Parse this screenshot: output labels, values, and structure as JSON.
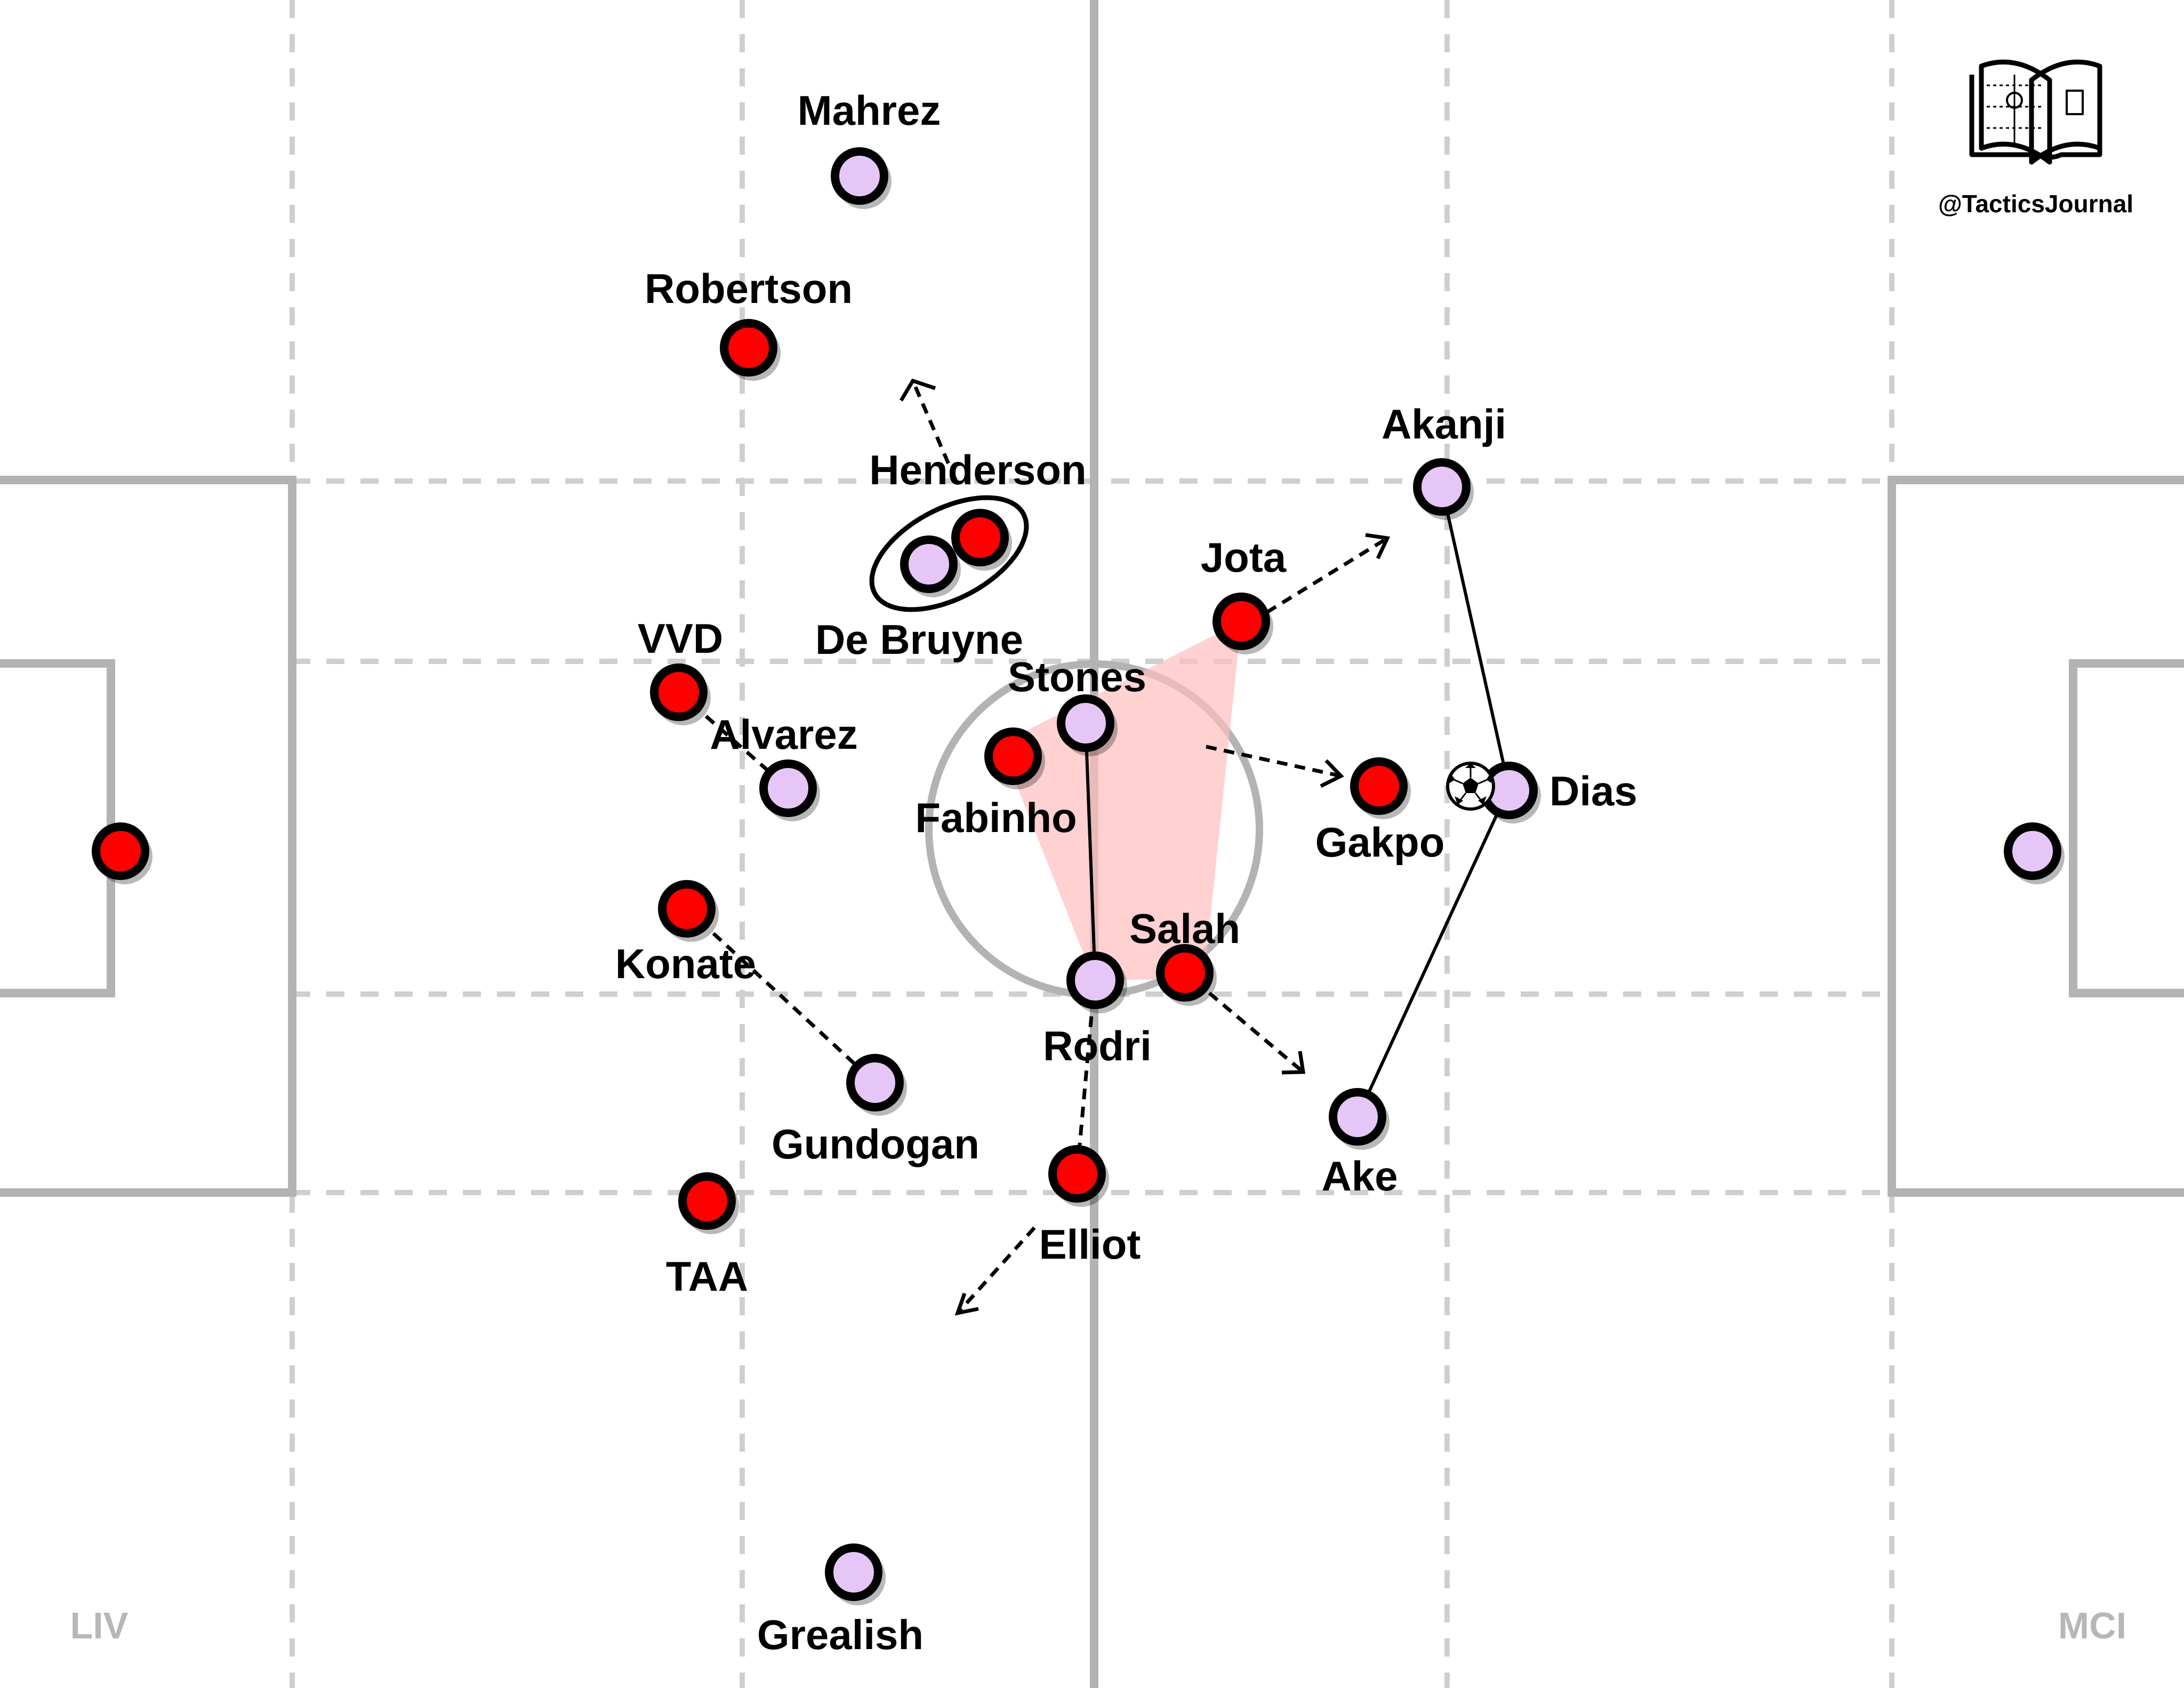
{
  "teams": {
    "left": "LIV",
    "right": "MCI"
  },
  "brand": {
    "handle": "@TacticsJournal",
    "icon": "open-book-pitch-icon"
  },
  "colors": {
    "liverpool": "#ff0000",
    "man_city": "#e5c6f7",
    "pitch_lines": "#b3b3b3",
    "zone_lines": "#cfcfcf",
    "passing_lane": "#ffbdbd"
  },
  "players": {
    "liverpool": [
      {
        "id": "liv-gk",
        "name": ""
      },
      {
        "id": "robertson",
        "name": "Robertson"
      },
      {
        "id": "henderson",
        "name": "Henderson"
      },
      {
        "id": "jota",
        "name": "Jota"
      },
      {
        "id": "vvd",
        "name": "VVD"
      },
      {
        "id": "fabinho",
        "name": "Fabinho"
      },
      {
        "id": "gakpo",
        "name": "Gakpo"
      },
      {
        "id": "konate",
        "name": "Konate"
      },
      {
        "id": "salah",
        "name": "Salah"
      },
      {
        "id": "taa",
        "name": "TAA"
      },
      {
        "id": "elliot",
        "name": "Elliot"
      }
    ],
    "man_city": [
      {
        "id": "mahrez",
        "name": "Mahrez"
      },
      {
        "id": "de-bruyne",
        "name": "De Bruyne"
      },
      {
        "id": "akanji",
        "name": "Akanji"
      },
      {
        "id": "stones",
        "name": "Stones"
      },
      {
        "id": "alvarez",
        "name": "Alvarez"
      },
      {
        "id": "dias",
        "name": "Dias"
      },
      {
        "id": "rodri",
        "name": "Rodri"
      },
      {
        "id": "gundogan",
        "name": "Gundogan"
      },
      {
        "id": "ake",
        "name": "Ake"
      },
      {
        "id": "grealish",
        "name": "Grealish"
      },
      {
        "id": "city-gk",
        "name": ""
      }
    ]
  },
  "ball": {
    "icon": "football-icon",
    "holder": "Dias"
  }
}
